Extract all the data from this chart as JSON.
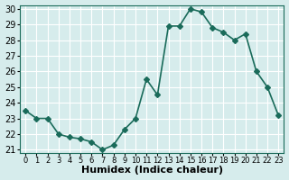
{
  "x": [
    0,
    1,
    2,
    3,
    4,
    5,
    6,
    7,
    8,
    9,
    10,
    11,
    12,
    13,
    14,
    15,
    16,
    17,
    18,
    19,
    20,
    21,
    22,
    23
  ],
  "y": [
    23.5,
    23.0,
    23.0,
    22.0,
    21.8,
    21.7,
    21.5,
    21.0,
    21.3,
    22.3,
    23.0,
    25.5,
    24.5,
    28.9,
    28.9,
    30.0,
    29.8,
    28.8,
    28.5,
    28.0,
    28.4,
    26.0,
    25.0,
    23.2
  ],
  "xlabel": "Humidex (Indice chaleur)",
  "ylim": [
    21,
    30
  ],
  "xlim_min": -0.5,
  "xlim_max": 23.5,
  "yticks": [
    21,
    22,
    23,
    24,
    25,
    26,
    27,
    28,
    29,
    30
  ],
  "xticks": [
    0,
    1,
    2,
    3,
    4,
    5,
    6,
    7,
    8,
    9,
    10,
    11,
    12,
    13,
    14,
    15,
    16,
    17,
    18,
    19,
    20,
    21,
    22,
    23
  ],
  "xtick_labels": [
    "0",
    "1",
    "2",
    "3",
    "4",
    "5",
    "6",
    "7",
    "8",
    "9",
    "10",
    "11",
    "12",
    "13",
    "14",
    "15",
    "16",
    "17",
    "18",
    "19",
    "20",
    "21",
    "22",
    "23"
  ],
  "line_color": "#1a6b5a",
  "marker": "D",
  "marker_size": 3,
  "bg_color": "#d6ecec",
  "grid_color": "#ffffff",
  "tick_fontsize": 6,
  "xlabel_fontsize": 8,
  "line_width": 1.2
}
